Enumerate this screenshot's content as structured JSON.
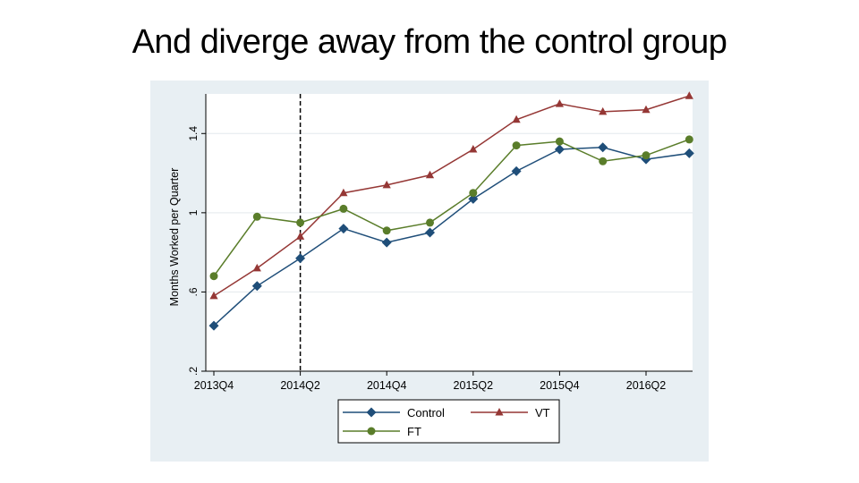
{
  "slide": {
    "title": "And diverge away from the control group"
  },
  "colors": {
    "outer_bg": "#e8eff3",
    "plot_bg": "#ffffff",
    "grid": "#e3e9ed",
    "Control": "#1f4e79",
    "VT": "#953735",
    "FT": "#5a7d2a",
    "vline": "#000000"
  },
  "chart_data": {
    "type": "line",
    "title": "",
    "xlabel": "",
    "ylabel": "Months Worked per Quarter",
    "x": [
      "2013Q4",
      "2014Q1",
      "2014Q2",
      "2014Q3",
      "2014Q4",
      "2015Q1",
      "2015Q2",
      "2015Q3",
      "2015Q4",
      "2016Q1",
      "2016Q2",
      "2016Q3"
    ],
    "x_tick_labels": [
      "2013Q4",
      "2014Q2",
      "2014Q4",
      "2015Q2",
      "2015Q4",
      "2016Q2"
    ],
    "ylim": [
      0.2,
      1.6
    ],
    "y_ticks": [
      0.2,
      0.6,
      1.0,
      1.4
    ],
    "y_tick_labels": [
      ".2",
      ".6",
      "1",
      "1.4"
    ],
    "grid": true,
    "vertical_line_at": "2014Q2",
    "legend_position": "bottom",
    "series": [
      {
        "name": "Control",
        "marker": "diamond",
        "values": [
          0.43,
          0.63,
          0.77,
          0.92,
          0.85,
          0.9,
          1.07,
          1.21,
          1.32,
          1.33,
          1.27,
          1.3
        ]
      },
      {
        "name": "VT",
        "marker": "triangle",
        "values": [
          0.58,
          0.72,
          0.88,
          1.1,
          1.14,
          1.19,
          1.32,
          1.47,
          1.55,
          1.51,
          1.52,
          1.59
        ]
      },
      {
        "name": "FT",
        "marker": "circle",
        "values": [
          0.68,
          0.98,
          0.95,
          1.02,
          0.91,
          0.95,
          1.1,
          1.34,
          1.36,
          1.26,
          1.29,
          1.37
        ]
      }
    ]
  }
}
